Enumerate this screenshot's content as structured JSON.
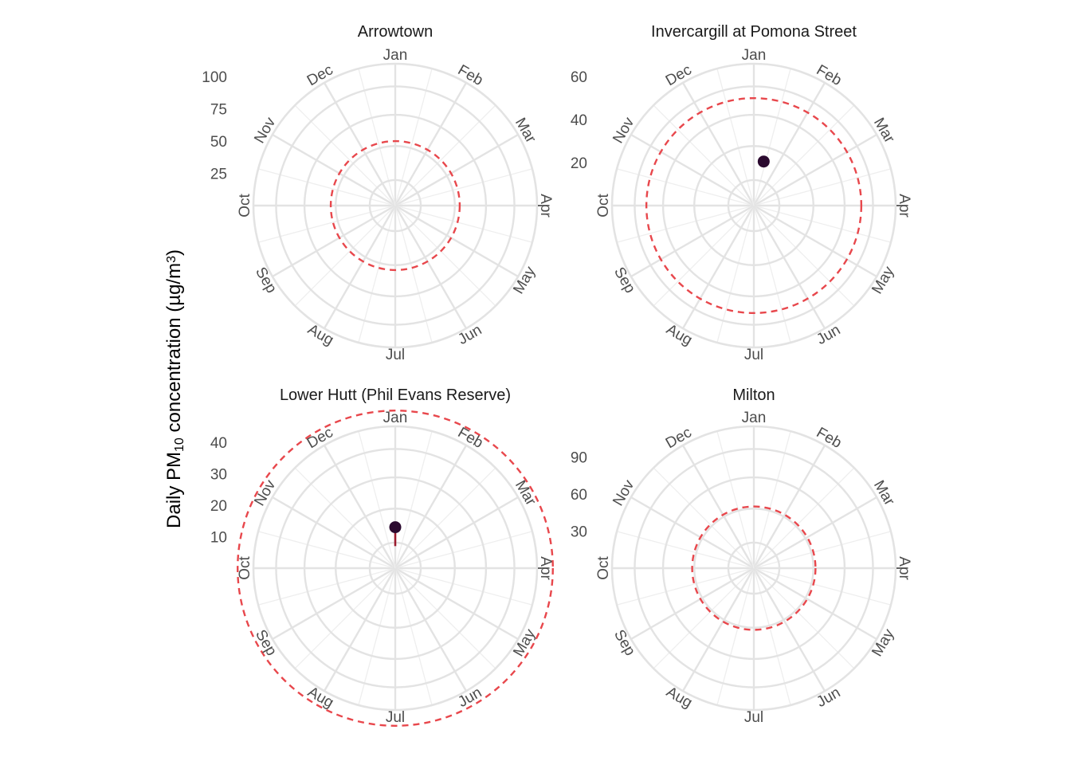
{
  "chart_data": {
    "type": "scatter",
    "coordinate_system": "polar",
    "y_axis_title": {
      "prefix": "Daily PM",
      "subscript": "10",
      "middle": " concentration (µg/m",
      "superscript": "3",
      "suffix": ")"
    },
    "months": [
      "Jan",
      "Feb",
      "Mar",
      "Apr",
      "May",
      "Jun",
      "Jul",
      "Aug",
      "Sep",
      "Oct",
      "Nov",
      "Dec"
    ],
    "colors": {
      "grid": "#e3e3e3",
      "guideline": "#e8474c",
      "point": "#2b0a2f",
      "segment": "#9b1b2e"
    },
    "panels": [
      {
        "title": "Arrowtown",
        "r_ticks": [
          25,
          50,
          75,
          100
        ],
        "r_max": 110,
        "guideline": 50,
        "points": []
      },
      {
        "title": "Invercargill at Pomona Street",
        "r_ticks": [
          20,
          40,
          60
        ],
        "r_max": 66,
        "guideline": 50,
        "points": [
          {
            "month": "Jan",
            "day": 14,
            "value": 21
          }
        ]
      },
      {
        "title": "Lower Hutt (Phil Evans Reserve)",
        "r_ticks": [
          10,
          20,
          30,
          40
        ],
        "r_max": 45,
        "guideline": 50,
        "points": [
          {
            "month": "Jan",
            "day": 1,
            "value": 13,
            "lower": 7
          }
        ]
      },
      {
        "title": "Milton",
        "r_ticks": [
          30,
          60,
          90
        ],
        "r_max": 115,
        "guideline": 50,
        "points": []
      }
    ]
  }
}
